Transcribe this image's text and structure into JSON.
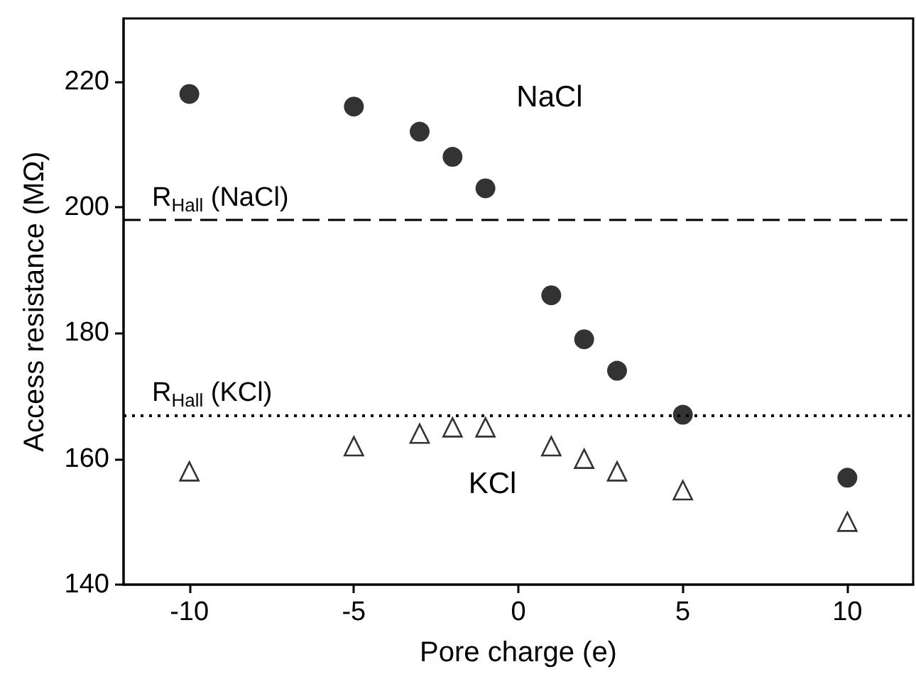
{
  "chart_data": {
    "type": "scatter",
    "xlabel": "Pore charge (e)",
    "ylabel": "Access resistance (MΩ)",
    "x": [
      -10,
      -5,
      -3,
      -2,
      -1,
      1,
      2,
      3,
      5,
      10
    ],
    "series": [
      {
        "name": "NaCl",
        "color": "#000000",
        "marker": "circle",
        "values": [
          218,
          216,
          212,
          208,
          203,
          186,
          179,
          174,
          167,
          157
        ]
      },
      {
        "name": "KCl",
        "color": "#000000",
        "marker": "triangle",
        "values": [
          158,
          162,
          164,
          165,
          165,
          162,
          160,
          158,
          155,
          150
        ]
      }
    ],
    "xlim": [
      -12,
      12
    ],
    "xticks": [
      -10,
      -5,
      0,
      5,
      10
    ],
    "ylim": [
      140,
      230
    ],
    "yticks": [
      140,
      160,
      180,
      200,
      220
    ],
    "grid": false,
    "ref_lines": [
      {
        "axis": "y",
        "value": 198,
        "label": "R$_{Hall}$ (NaCl)",
        "line_style": "dashed"
      },
      {
        "axis": "y",
        "value": 167,
        "label": "R$_{Hall}$ (KCl)",
        "line_style": "dotted"
      }
    ]
  }
}
